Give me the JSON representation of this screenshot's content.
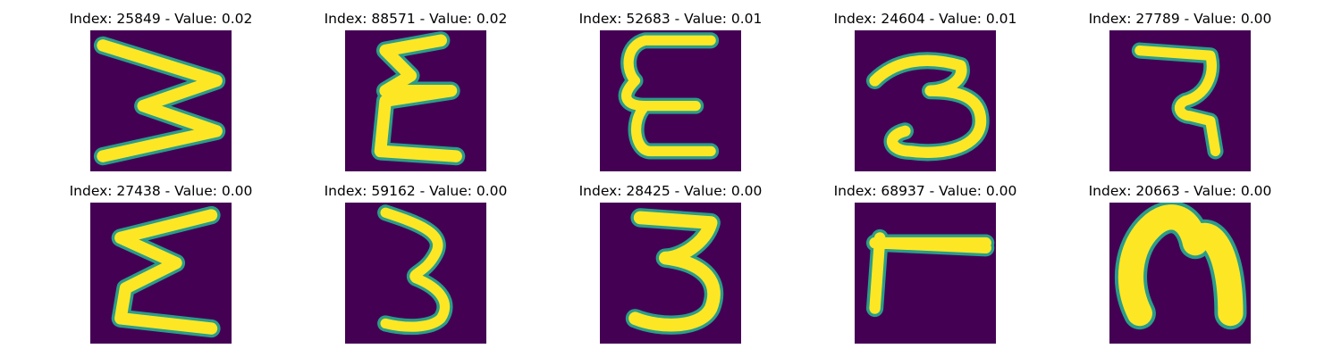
{
  "panels": [
    {
      "index": "25849",
      "value": "0.02",
      "title": "Index: 25849 - Value: 0.02",
      "glyph": "zigzag-3"
    },
    {
      "index": "88571",
      "value": "0.02",
      "title": "Index: 88571 - Value: 0.02",
      "glyph": "epsilon-zigzag"
    },
    {
      "index": "52683",
      "value": "0.01",
      "title": "Index: 52683 - Value: 0.01",
      "glyph": "E-open"
    },
    {
      "index": "24604",
      "value": "0.01",
      "title": "Index: 24604 - Value: 0.01",
      "glyph": "cursive-3"
    },
    {
      "index": "27789",
      "value": "0.00",
      "title": "Index: 27789 - Value: 0.00",
      "glyph": "rotated-R"
    },
    {
      "index": "27438",
      "value": "0.00",
      "title": "Index: 27438 - Value: 0.00",
      "glyph": "sigma"
    },
    {
      "index": "59162",
      "value": "0.00",
      "title": "Index: 59162 - Value: 0.00",
      "glyph": "3-thin"
    },
    {
      "index": "28425",
      "value": "0.00",
      "title": "Index: 28425 - Value: 0.00",
      "glyph": "3-bold"
    },
    {
      "index": "68937",
      "value": "0.00",
      "title": "Index: 68937 - Value: 0.00",
      "glyph": "T-rotated"
    },
    {
      "index": "20663",
      "value": "0.00",
      "title": "Index: 20663 - Value: 0.00",
      "glyph": "n-blob"
    }
  ],
  "colors": {
    "background": "#440154",
    "edge": "#2a9d8a",
    "stroke": "#fde725"
  }
}
